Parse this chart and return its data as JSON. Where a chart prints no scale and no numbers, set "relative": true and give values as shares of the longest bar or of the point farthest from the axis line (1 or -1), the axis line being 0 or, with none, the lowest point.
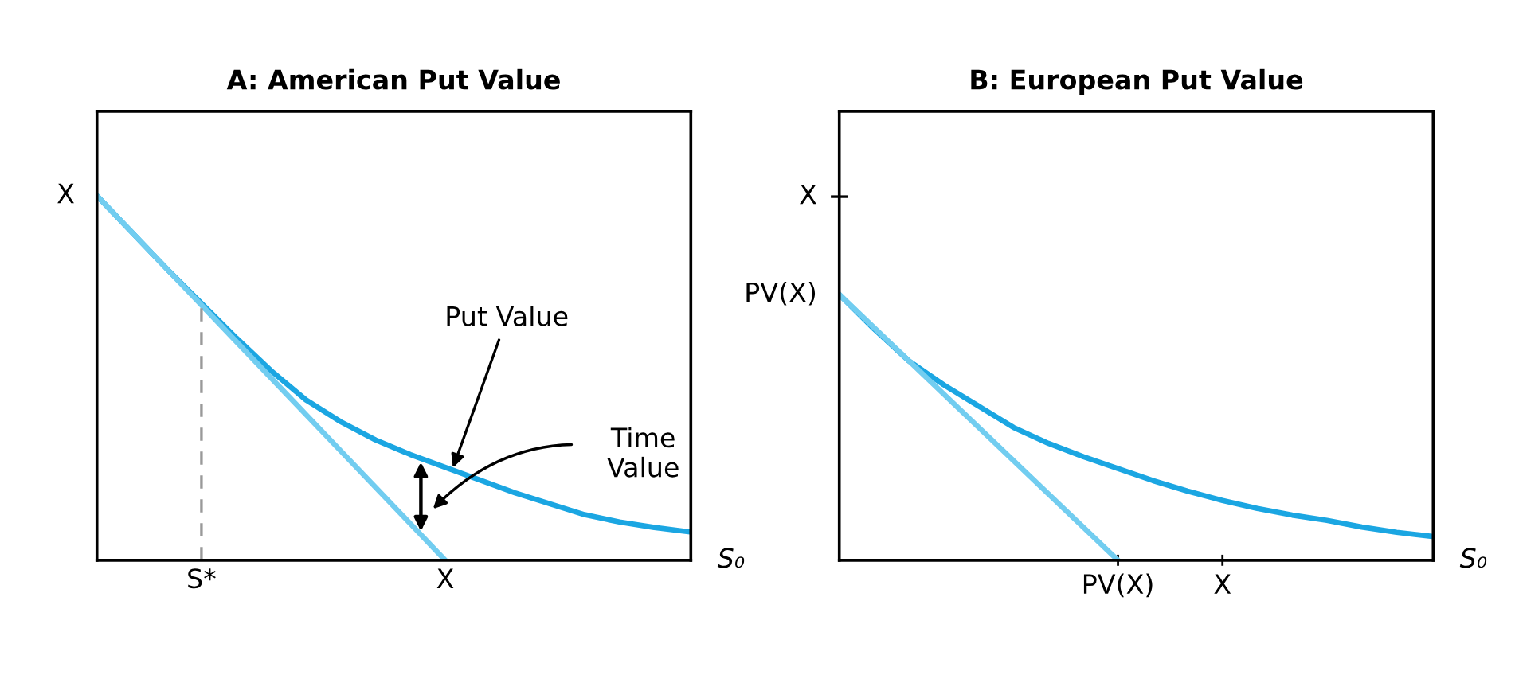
{
  "chart_data": [
    {
      "type": "line",
      "title": "A: American Put Value",
      "xlabel": "S₀",
      "relative": true,
      "categories": [
        null,
        null,
        null,
        "S*",
        null,
        null,
        null,
        null,
        null,
        null,
        "X",
        null,
        null,
        null,
        null,
        null,
        null,
        null
      ],
      "grid": false,
      "legend": false,
      "series": [
        {
          "values": [
            1,
            0.9,
            0.8,
            0.705,
            0.61,
            0.52,
            0.44,
            0.38,
            0.33,
            0.29,
            0.255,
            0.22,
            0.185,
            0.155,
            0.125,
            0.105,
            0.09,
            0.078
          ],
          "color": "#1ba6e2"
        },
        {
          "values": [
            1,
            0.9,
            0.8,
            0.7,
            0.6,
            0.5,
            0.4,
            0.3,
            0.2,
            0.1,
            0,
            null,
            null,
            null,
            null,
            null,
            null,
            null
          ],
          "color": "#72cdf0"
        }
      ],
      "ref_lines": [
        {
          "axis": "x",
          "value": "S*",
          "color": "#999999",
          "line_style": "dashed"
        }
      ],
      "annotations": [
        "X",
        "Put Value",
        "Time Value"
      ]
    },
    {
      "type": "line",
      "title": "B: European Put Value",
      "xlabel": "S₀",
      "relative": true,
      "categories": [
        null,
        null,
        null,
        null,
        null,
        null,
        null,
        null,
        "PV(X)",
        null,
        null,
        "X",
        null,
        null,
        null,
        null,
        null,
        null
      ],
      "grid": false,
      "legend": false,
      "series": [
        {
          "values": [
            1,
            0.87,
            0.75,
            0.66,
            0.58,
            0.5,
            0.44,
            0.39,
            0.345,
            0.3,
            0.26,
            0.225,
            0.195,
            0.17,
            0.15,
            0.125,
            0.105,
            0.09
          ],
          "color": "#1ba6e2"
        },
        {
          "values": [
            1,
            0.875,
            0.75,
            0.625,
            0.5,
            0.375,
            0.25,
            0.125,
            0,
            null,
            null,
            null,
            null,
            null,
            null,
            null,
            null,
            null
          ],
          "color": "#72cdf0"
        }
      ],
      "annotations": [
        "X",
        "PV(X)"
      ]
    }
  ]
}
